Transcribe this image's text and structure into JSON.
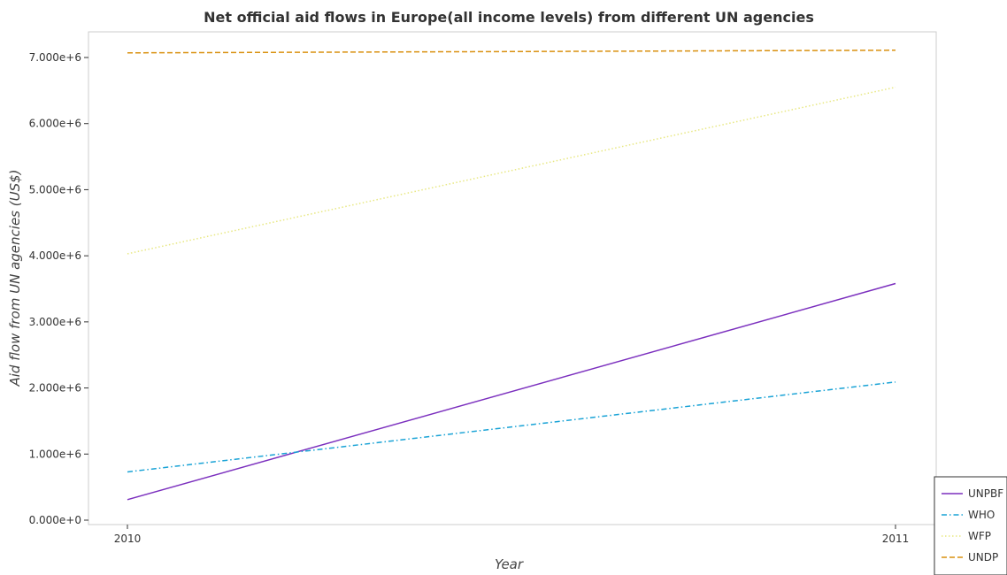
{
  "chart_data": {
    "type": "line",
    "title": "Net official aid flows in Europe(all income levels) from different UN agencies",
    "xlabel": "Year",
    "ylabel": "Aid flow from UN agencies (US$)",
    "x": [
      "2010",
      "2011"
    ],
    "ylim": [
      0,
      7500000
    ],
    "yticks": [
      0,
      1000000,
      2000000,
      3000000,
      4000000,
      5000000,
      6000000,
      7000000
    ],
    "ytick_labels": [
      "0.000e+0",
      "1.000e+6",
      "2.000e+6",
      "3.000e+6",
      "4.000e+6",
      "5.000e+6",
      "6.000e+6",
      "7.000e+6"
    ],
    "grid": false,
    "legend_position": "bottom-right",
    "series": [
      {
        "name": "UNPBF",
        "color": "#7b2fbe",
        "dash": "solid",
        "values": [
          310000,
          3580000
        ]
      },
      {
        "name": "WHO",
        "color": "#1aa3d6",
        "dash": "dashdot",
        "values": [
          730000,
          2090000
        ]
      },
      {
        "name": "WFP",
        "color": "#e8e882",
        "dash": "dotted",
        "values": [
          4030000,
          6550000
        ]
      },
      {
        "name": "UNDP",
        "color": "#d9900f",
        "dash": "dashed",
        "values": [
          7070000,
          7110000
        ]
      }
    ]
  }
}
